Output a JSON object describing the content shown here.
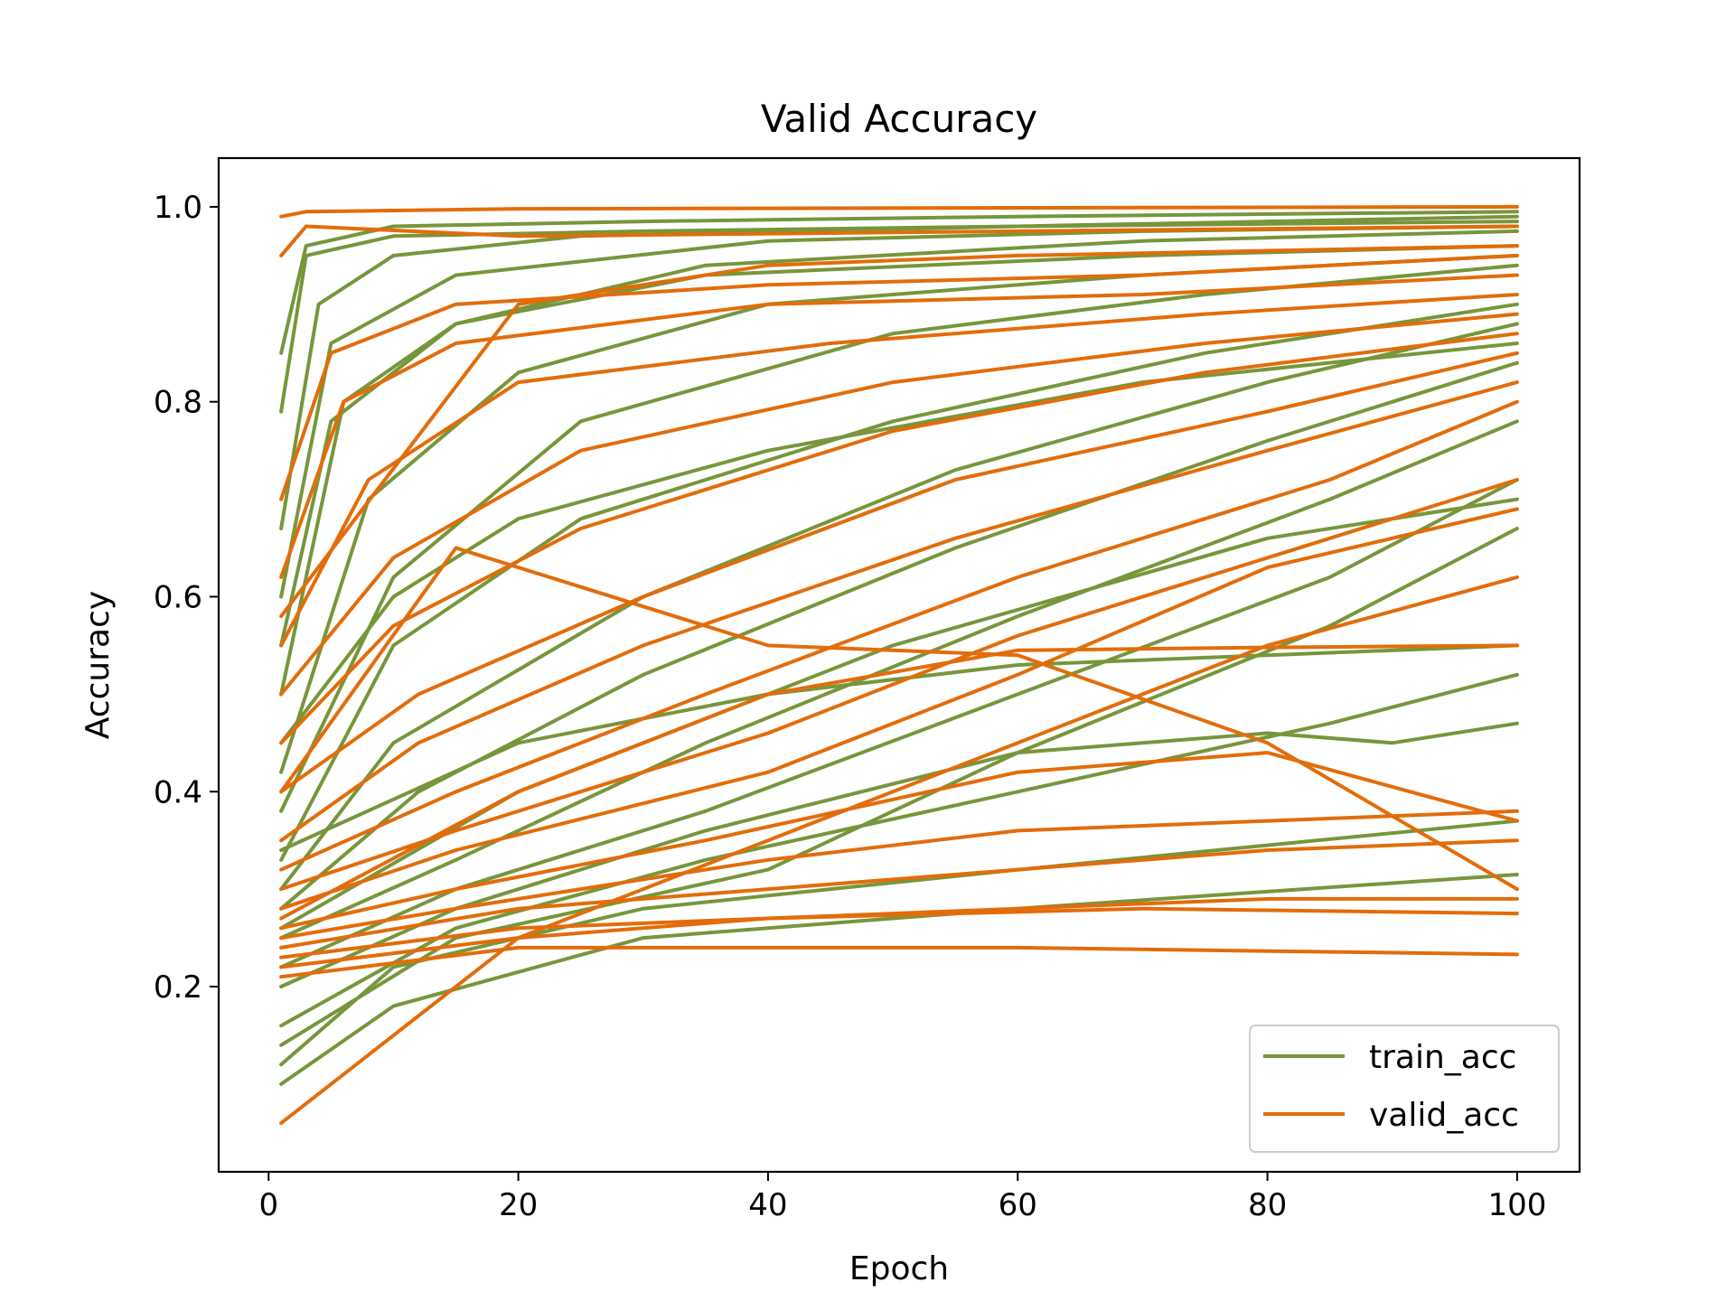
{
  "chart_data": {
    "type": "line",
    "title": "Valid Accuracy",
    "xlabel": "Epoch",
    "ylabel": "Accuracy",
    "xlim": [
      -4,
      105
    ],
    "ylim": [
      0.01,
      1.05
    ],
    "xticks": [
      0,
      20,
      40,
      60,
      80,
      100
    ],
    "yticks": [
      0.2,
      0.4,
      0.6,
      0.8,
      1.0
    ],
    "xtick_labels": [
      "0",
      "20",
      "40",
      "60",
      "80",
      "100"
    ],
    "ytick_labels": [
      "0.2",
      "0.4",
      "0.6",
      "0.8",
      "1.0"
    ],
    "grid": false,
    "legend_position": "lower-right",
    "colors": {
      "train_acc": "#77963b",
      "valid_acc": "#e36c0a"
    },
    "series": [
      {
        "name": "train_acc",
        "color": "#77963b",
        "values": [
          [
            [
              1,
              0.85
            ],
            [
              3,
              0.96
            ],
            [
              10,
              0.98
            ],
            [
              30,
              0.985
            ],
            [
              60,
              0.99
            ],
            [
              100,
              0.995
            ]
          ],
          [
            [
              1,
              0.79
            ],
            [
              3,
              0.95
            ],
            [
              10,
              0.97
            ],
            [
              30,
              0.975
            ],
            [
              60,
              0.98
            ],
            [
              100,
              0.985
            ]
          ],
          [
            [
              1,
              0.67
            ],
            [
              4,
              0.9
            ],
            [
              10,
              0.95
            ],
            [
              25,
              0.97
            ],
            [
              60,
              0.98
            ],
            [
              100,
              0.99
            ]
          ],
          [
            [
              1,
              0.6
            ],
            [
              5,
              0.86
            ],
            [
              15,
              0.93
            ],
            [
              40,
              0.965
            ],
            [
              70,
              0.975
            ],
            [
              100,
              0.98
            ]
          ],
          [
            [
              1,
              0.5
            ],
            [
              6,
              0.8
            ],
            [
              15,
              0.88
            ],
            [
              35,
              0.94
            ],
            [
              70,
              0.965
            ],
            [
              100,
              0.975
            ]
          ],
          [
            [
              1,
              0.42
            ],
            [
              8,
              0.7
            ],
            [
              20,
              0.83
            ],
            [
              40,
              0.9
            ],
            [
              70,
              0.93
            ],
            [
              100,
              0.95
            ]
          ],
          [
            [
              1,
              0.38
            ],
            [
              10,
              0.62
            ],
            [
              25,
              0.78
            ],
            [
              50,
              0.87
            ],
            [
              75,
              0.91
            ],
            [
              100,
              0.94
            ]
          ],
          [
            [
              1,
              0.33
            ],
            [
              10,
              0.55
            ],
            [
              25,
              0.68
            ],
            [
              50,
              0.78
            ],
            [
              75,
              0.85
            ],
            [
              100,
              0.9
            ]
          ],
          [
            [
              1,
              0.3
            ],
            [
              10,
              0.45
            ],
            [
              30,
              0.6
            ],
            [
              55,
              0.73
            ],
            [
              80,
              0.82
            ],
            [
              100,
              0.88
            ]
          ],
          [
            [
              1,
              0.28
            ],
            [
              12,
              0.4
            ],
            [
              30,
              0.52
            ],
            [
              55,
              0.65
            ],
            [
              80,
              0.76
            ],
            [
              100,
              0.84
            ]
          ],
          [
            [
              1,
              0.25
            ],
            [
              15,
              0.33
            ],
            [
              35,
              0.45
            ],
            [
              60,
              0.58
            ],
            [
              85,
              0.7
            ],
            [
              100,
              0.78
            ]
          ],
          [
            [
              1,
              0.22
            ],
            [
              15,
              0.3
            ],
            [
              35,
              0.38
            ],
            [
              60,
              0.5
            ],
            [
              85,
              0.62
            ],
            [
              100,
              0.72
            ]
          ],
          [
            [
              1,
              0.2
            ],
            [
              15,
              0.28
            ],
            [
              35,
              0.36
            ],
            [
              60,
              0.44
            ],
            [
              85,
              0.57
            ],
            [
              100,
              0.67
            ]
          ],
          [
            [
              1,
              0.16
            ],
            [
              15,
              0.26
            ],
            [
              35,
              0.33
            ],
            [
              60,
              0.4
            ],
            [
              85,
              0.47
            ],
            [
              100,
              0.52
            ]
          ],
          [
            [
              1,
              0.14
            ],
            [
              15,
              0.25
            ],
            [
              40,
              0.32
            ],
            [
              60,
              0.44
            ],
            [
              80,
              0.46
            ],
            [
              90,
              0.45
            ],
            [
              100,
              0.47
            ]
          ],
          [
            [
              1,
              0.12
            ],
            [
              10,
              0.22
            ],
            [
              30,
              0.28
            ],
            [
              60,
              0.32
            ],
            [
              100,
              0.37
            ]
          ],
          [
            [
              1,
              0.1
            ],
            [
              10,
              0.18
            ],
            [
              30,
              0.25
            ],
            [
              60,
              0.28
            ],
            [
              100,
              0.315
            ]
          ],
          [
            [
              1,
              0.34
            ],
            [
              20,
              0.45
            ],
            [
              40,
              0.5
            ],
            [
              60,
              0.53
            ],
            [
              80,
              0.54
            ],
            [
              100,
              0.55
            ]
          ],
          [
            [
              1,
              0.45
            ],
            [
              10,
              0.6
            ],
            [
              20,
              0.68
            ],
            [
              40,
              0.75
            ],
            [
              70,
              0.82
            ],
            [
              100,
              0.86
            ]
          ],
          [
            [
              1,
              0.55
            ],
            [
              5,
              0.78
            ],
            [
              15,
              0.88
            ],
            [
              35,
              0.93
            ],
            [
              70,
              0.95
            ],
            [
              100,
              0.96
            ]
          ],
          [
            [
              1,
              0.26
            ],
            [
              20,
              0.4
            ],
            [
              50,
              0.55
            ],
            [
              80,
              0.66
            ],
            [
              100,
              0.7
            ]
          ]
        ]
      },
      {
        "name": "valid_acc",
        "color": "#e36c0a",
        "values": [
          [
            [
              1,
              0.99
            ],
            [
              3,
              0.995
            ],
            [
              20,
              0.998
            ],
            [
              60,
              0.999
            ],
            [
              100,
              1.0
            ]
          ],
          [
            [
              1,
              0.95
            ],
            [
              3,
              0.98
            ],
            [
              20,
              0.97
            ],
            [
              60,
              0.975
            ],
            [
              100,
              0.98
            ]
          ],
          [
            [
              1,
              0.7
            ],
            [
              5,
              0.85
            ],
            [
              15,
              0.9
            ],
            [
              40,
              0.92
            ],
            [
              70,
              0.93
            ],
            [
              100,
              0.95
            ]
          ],
          [
            [
              1,
              0.62
            ],
            [
              6,
              0.8
            ],
            [
              15,
              0.86
            ],
            [
              40,
              0.9
            ],
            [
              70,
              0.91
            ],
            [
              100,
              0.93
            ]
          ],
          [
            [
              1,
              0.55
            ],
            [
              8,
              0.72
            ],
            [
              20,
              0.82
            ],
            [
              45,
              0.86
            ],
            [
              75,
              0.89
            ],
            [
              100,
              0.91
            ]
          ],
          [
            [
              1,
              0.5
            ],
            [
              10,
              0.64
            ],
            [
              25,
              0.75
            ],
            [
              50,
              0.82
            ],
            [
              75,
              0.86
            ],
            [
              100,
              0.89
            ]
          ],
          [
            [
              1,
              0.45
            ],
            [
              10,
              0.57
            ],
            [
              25,
              0.67
            ],
            [
              50,
              0.77
            ],
            [
              75,
              0.83
            ],
            [
              100,
              0.87
            ]
          ],
          [
            [
              1,
              0.4
            ],
            [
              12,
              0.5
            ],
            [
              30,
              0.6
            ],
            [
              55,
              0.72
            ],
            [
              80,
              0.79
            ],
            [
              100,
              0.85
            ]
          ],
          [
            [
              1,
              0.35
            ],
            [
              12,
              0.45
            ],
            [
              30,
              0.55
            ],
            [
              55,
              0.66
            ],
            [
              80,
              0.75
            ],
            [
              100,
              0.82
            ]
          ],
          [
            [
              1,
              0.32
            ],
            [
              15,
              0.4
            ],
            [
              35,
              0.5
            ],
            [
              60,
              0.62
            ],
            [
              85,
              0.72
            ],
            [
              100,
              0.8
            ]
          ],
          [
            [
              1,
              0.3
            ],
            [
              15,
              0.36
            ],
            [
              40,
              0.46
            ],
            [
              60,
              0.56
            ],
            [
              85,
              0.66
            ],
            [
              100,
              0.72
            ]
          ],
          [
            [
              1,
              0.28
            ],
            [
              15,
              0.34
            ],
            [
              40,
              0.42
            ],
            [
              60,
              0.52
            ],
            [
              80,
              0.63
            ],
            [
              100,
              0.69
            ]
          ],
          [
            [
              1,
              0.27
            ],
            [
              20,
              0.4
            ],
            [
              40,
              0.5
            ],
            [
              60,
              0.545
            ],
            [
              80,
              0.548
            ],
            [
              100,
              0.55
            ]
          ],
          [
            [
              1,
              0.26
            ],
            [
              15,
              0.3
            ],
            [
              35,
              0.35
            ],
            [
              60,
              0.42
            ],
            [
              80,
              0.44
            ],
            [
              100,
              0.37
            ]
          ],
          [
            [
              1,
              0.25
            ],
            [
              15,
              0.28
            ],
            [
              40,
              0.33
            ],
            [
              60,
              0.36
            ],
            [
              80,
              0.37
            ],
            [
              100,
              0.38
            ]
          ],
          [
            [
              1,
              0.24
            ],
            [
              20,
              0.28
            ],
            [
              40,
              0.3
            ],
            [
              60,
              0.32
            ],
            [
              80,
              0.34
            ],
            [
              100,
              0.35
            ]
          ],
          [
            [
              1,
              0.23
            ],
            [
              20,
              0.26
            ],
            [
              40,
              0.27
            ],
            [
              60,
              0.28
            ],
            [
              80,
              0.29
            ],
            [
              100,
              0.29
            ]
          ],
          [
            [
              1,
              0.22
            ],
            [
              20,
              0.25
            ],
            [
              40,
              0.27
            ],
            [
              70,
              0.28
            ],
            [
              100,
              0.275
            ]
          ],
          [
            [
              1,
              0.21
            ],
            [
              20,
              0.24
            ],
            [
              40,
              0.24
            ],
            [
              60,
              0.24
            ],
            [
              100,
              0.233
            ]
          ],
          [
            [
              1,
              0.06
            ],
            [
              20,
              0.25
            ],
            [
              40,
              0.35
            ],
            [
              60,
              0.45
            ],
            [
              80,
              0.55
            ],
            [
              100,
              0.62
            ]
          ],
          [
            [
              1,
              0.58
            ],
            [
              20,
              0.9
            ],
            [
              40,
              0.94
            ],
            [
              60,
              0.95
            ],
            [
              100,
              0.96
            ]
          ],
          [
            [
              1,
              0.4
            ],
            [
              15,
              0.65
            ],
            [
              40,
              0.55
            ],
            [
              60,
              0.54
            ],
            [
              80,
              0.45
            ],
            [
              100,
              0.3
            ]
          ]
        ]
      }
    ]
  }
}
